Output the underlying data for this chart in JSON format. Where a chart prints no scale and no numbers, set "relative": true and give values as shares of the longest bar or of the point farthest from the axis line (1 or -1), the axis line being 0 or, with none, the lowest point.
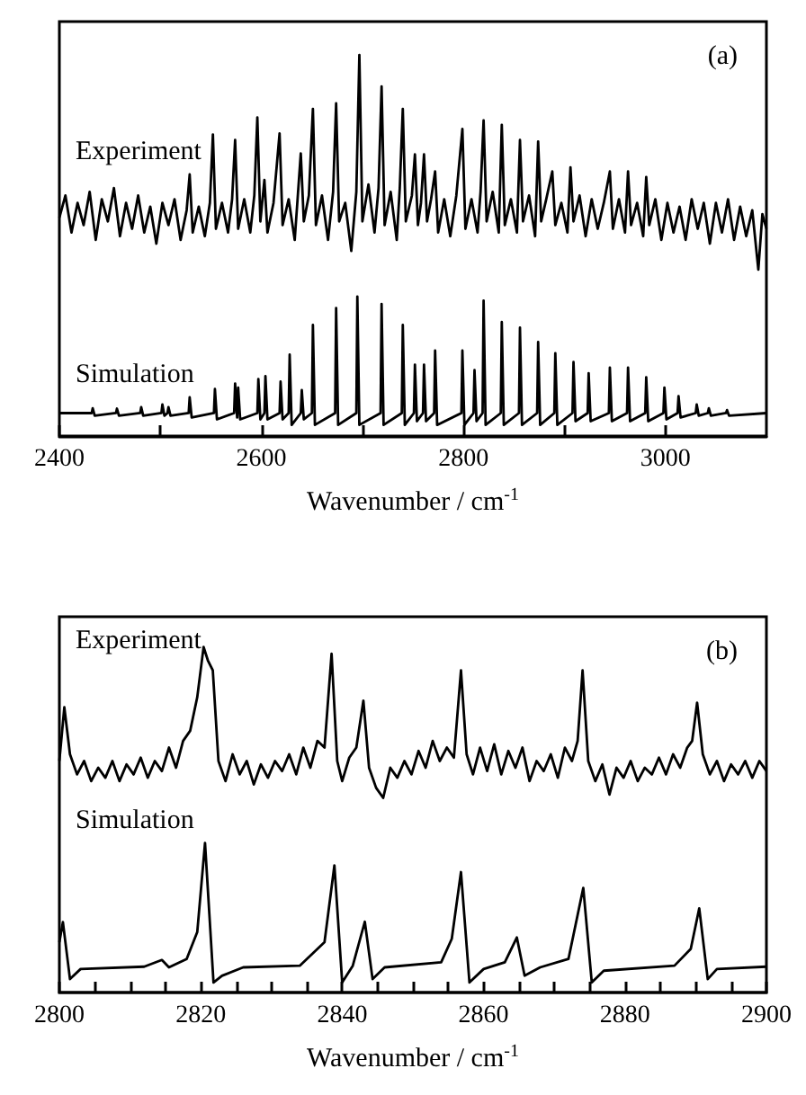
{
  "chart_data": [
    {
      "type": "line",
      "relative": true,
      "xlim": [
        2400,
        3100
      ],
      "xlabel": "Wavenumber / cm$^{-1}$",
      "annotations": [
        "(a)"
      ],
      "tick_labels": "x",
      "xticks": [
        2400,
        {
          "value": 2500,
          "label": null
        },
        2600,
        {
          "value": 2700,
          "label": null
        },
        2800,
        {
          "value": 2900,
          "label": null
        },
        3000
      ],
      "series": [
        {
          "name": "Experiment",
          "color": "#000000",
          "x": [
            2400,
            2406,
            2412,
            2418,
            2424,
            2430,
            2436,
            2442,
            2448,
            2454,
            2460,
            2466,
            2472,
            2478,
            2484,
            2490,
            2496,
            2502,
            2508,
            2514,
            2520,
            2526,
            2529,
            2532,
            2538,
            2544,
            2549,
            2552,
            2555,
            2561,
            2567,
            2571,
            2574,
            2577,
            2583,
            2589,
            2593,
            2596,
            2599,
            2603,
            2606,
            2612,
            2618,
            2621,
            2627,
            2633,
            2639,
            2642,
            2647,
            2651,
            2654,
            2660,
            2666,
            2671,
            2674,
            2677,
            2683,
            2689,
            2694,
            2697,
            2700,
            2706,
            2712,
            2716,
            2719,
            2722,
            2728,
            2734,
            2737,
            2740,
            2743,
            2749,
            2752,
            2755,
            2758,
            2761,
            2764,
            2768,
            2772,
            2775,
            2781,
            2787,
            2793,
            2799,
            2802,
            2808,
            2814,
            2817,
            2820,
            2823,
            2829,
            2835,
            2838,
            2841,
            2847,
            2853,
            2856,
            2859,
            2865,
            2871,
            2874,
            2877,
            2882,
            2888,
            2891,
            2897,
            2903,
            2906,
            2909,
            2915,
            2921,
            2927,
            2933,
            2939,
            2945,
            2948,
            2954,
            2960,
            2963,
            2966,
            2972,
            2978,
            2981,
            2984,
            2990,
            2996,
            3002,
            3008,
            3014,
            3020,
            3026,
            3032,
            3038,
            3044,
            3050,
            3056,
            3062,
            3068,
            3074,
            3080,
            3086,
            3092,
            3096,
            3100
          ],
          "values": [
            0.56,
            0.62,
            0.52,
            0.6,
            0.54,
            0.63,
            0.5,
            0.61,
            0.55,
            0.64,
            0.51,
            0.6,
            0.53,
            0.62,
            0.52,
            0.59,
            0.49,
            0.6,
            0.54,
            0.61,
            0.5,
            0.58,
            0.677,
            0.52,
            0.59,
            0.51,
            0.6,
            0.785,
            0.53,
            0.6,
            0.52,
            0.61,
            0.77,
            0.53,
            0.61,
            0.52,
            0.62,
            0.831,
            0.55,
            0.662,
            0.52,
            0.6,
            0.788,
            0.54,
            0.61,
            0.5,
            0.734,
            0.55,
            0.62,
            0.854,
            0.54,
            0.62,
            0.5,
            0.63,
            0.869,
            0.55,
            0.6,
            0.47,
            0.63,
            1.0,
            0.55,
            0.65,
            0.52,
            0.64,
            0.915,
            0.54,
            0.63,
            0.5,
            0.64,
            0.854,
            0.55,
            0.62,
            0.731,
            0.54,
            0.6,
            0.731,
            0.55,
            0.61,
            0.685,
            0.52,
            0.61,
            0.51,
            0.62,
            0.8,
            0.53,
            0.61,
            0.52,
            0.63,
            0.823,
            0.55,
            0.63,
            0.52,
            0.811,
            0.54,
            0.61,
            0.52,
            0.77,
            0.55,
            0.62,
            0.51,
            0.766,
            0.55,
            0.61,
            0.685,
            0.54,
            0.6,
            0.52,
            0.696,
            0.55,
            0.62,
            0.51,
            0.61,
            0.53,
            0.6,
            0.685,
            0.53,
            0.61,
            0.52,
            0.685,
            0.54,
            0.6,
            0.51,
            0.67,
            0.54,
            0.61,
            0.5,
            0.6,
            0.52,
            0.59,
            0.5,
            0.61,
            0.53,
            0.6,
            0.49,
            0.6,
            0.52,
            0.61,
            0.5,
            0.59,
            0.51,
            0.58,
            0.42,
            0.57,
            0.53
          ]
        },
        {
          "name": "Simulation",
          "color": "#000000",
          "x": [
            2400,
            2432,
            2433,
            2435,
            2456,
            2457,
            2459,
            2480,
            2481,
            2483,
            2501,
            2502,
            2504,
            2507,
            2508,
            2510,
            2528,
            2529,
            2531,
            2553,
            2554,
            2556,
            2573,
            2574,
            2576,
            2577,
            2579,
            2596,
            2597,
            2599,
            2603,
            2604,
            2606,
            2618,
            2619,
            2621,
            2627,
            2628,
            2630,
            2639,
            2640,
            2642,
            2650,
            2651,
            2653,
            2673,
            2674,
            2676,
            2694,
            2695,
            2697,
            2718,
            2719,
            2721,
            2739,
            2740,
            2742,
            2751,
            2752,
            2754,
            2760,
            2761,
            2763,
            2771,
            2772,
            2774,
            2798,
            2799,
            2801,
            2810,
            2811,
            2813,
            2819,
            2820,
            2822,
            2837,
            2838,
            2840,
            2855,
            2856,
            2858,
            2873,
            2874,
            2876,
            2890,
            2891,
            2893,
            2908,
            2909,
            2911,
            2923,
            2924,
            2926,
            2944,
            2945,
            2947,
            2962,
            2963,
            2965,
            2980,
            2981,
            2983,
            2998,
            2999,
            3001,
            3012,
            3013,
            3015,
            3030,
            3031,
            3033,
            3042,
            3043,
            3045,
            3060,
            3061,
            3063,
            3100
          ],
          "values": [
            0.032,
            0.032,
            0.045,
            0.025,
            0.032,
            0.044,
            0.025,
            0.032,
            0.048,
            0.025,
            0.032,
            0.055,
            0.025,
            0.032,
            0.048,
            0.025,
            0.032,
            0.075,
            0.02,
            0.032,
            0.097,
            0.015,
            0.032,
            0.112,
            0.02,
            0.101,
            0.015,
            0.032,
            0.124,
            0.015,
            0.032,
            0.132,
            0.015,
            0.032,
            0.117,
            0.015,
            0.032,
            0.19,
            0.0,
            0.032,
            0.094,
            0.015,
            0.032,
            0.27,
            0.0,
            0.032,
            0.316,
            0.0,
            0.032,
            0.347,
            0.0,
            0.032,
            0.327,
            0.0,
            0.032,
            0.27,
            0.0,
            0.032,
            0.163,
            0.01,
            0.032,
            0.163,
            0.01,
            0.032,
            0.201,
            0.0,
            0.032,
            0.201,
            0.0,
            0.032,
            0.148,
            0.01,
            0.032,
            0.336,
            0.0,
            0.032,
            0.278,
            0.0,
            0.032,
            0.263,
            0.0,
            0.032,
            0.224,
            0.0,
            0.032,
            0.194,
            0.0,
            0.032,
            0.17,
            0.01,
            0.032,
            0.14,
            0.01,
            0.032,
            0.155,
            0.01,
            0.032,
            0.155,
            0.01,
            0.032,
            0.129,
            0.01,
            0.032,
            0.101,
            0.015,
            0.032,
            0.078,
            0.02,
            0.032,
            0.055,
            0.025,
            0.032,
            0.045,
            0.025,
            0.032,
            0.04,
            0.025,
            0.032
          ]
        }
      ]
    },
    {
      "type": "line",
      "relative": true,
      "xlim": [
        2800,
        2900
      ],
      "xlabel": "Wavenumber / cm$^{-1}$",
      "annotations": [
        "(b)"
      ],
      "tick_labels": "x",
      "xticks": [
        2800,
        {
          "value": 2805,
          "label": null
        },
        {
          "value": 2810,
          "label": null
        },
        {
          "value": 2815,
          "label": null
        },
        2820,
        {
          "value": 2825,
          "label": null
        },
        {
          "value": 2830,
          "label": null
        },
        {
          "value": 2835,
          "label": null
        },
        2840,
        {
          "value": 2845,
          "label": null
        },
        {
          "value": 2850,
          "label": null
        },
        {
          "value": 2855,
          "label": null
        },
        2860,
        {
          "value": 2865,
          "label": null
        },
        {
          "value": 2870,
          "label": null
        },
        {
          "value": 2875,
          "label": null
        },
        2880,
        {
          "value": 2885,
          "label": null
        },
        {
          "value": 2890,
          "label": null
        },
        {
          "value": 2895,
          "label": null
        },
        2900
      ],
      "series": [
        {
          "name": "Experiment",
          "color": "#000000",
          "x": [
            2800,
            2800.7,
            2801.5,
            2802.5,
            2803.5,
            2804.5,
            2805.5,
            2806.5,
            2807.5,
            2808.5,
            2809.5,
            2810.5,
            2811.5,
            2812.5,
            2813.5,
            2814.5,
            2815.5,
            2816.5,
            2817.5,
            2818.5,
            2819.5,
            2820.4,
            2821,
            2821.7,
            2822.5,
            2823.5,
            2824.5,
            2825.5,
            2826.5,
            2827.5,
            2828.5,
            2829.5,
            2830.5,
            2831.5,
            2832.5,
            2833.5,
            2834.5,
            2835.5,
            2836.5,
            2837.5,
            2838.5,
            2839.3,
            2840,
            2841,
            2842,
            2843,
            2843.8,
            2844.8,
            2845.8,
            2846.8,
            2847.8,
            2848.8,
            2849.8,
            2850.8,
            2851.8,
            2852.8,
            2853.8,
            2854.8,
            2855.8,
            2856.8,
            2857.6,
            2858.5,
            2859.5,
            2860.5,
            2861.5,
            2862.5,
            2863.5,
            2864.5,
            2865.5,
            2866.5,
            2867.5,
            2868.5,
            2869.5,
            2870.5,
            2871.5,
            2872.5,
            2873.3,
            2874,
            2874.8,
            2875.8,
            2876.8,
            2877.8,
            2878.8,
            2879.8,
            2880.8,
            2881.8,
            2882.8,
            2883.8,
            2884.8,
            2885.8,
            2886.8,
            2887.8,
            2888.8,
            2889.5,
            2890.2,
            2891,
            2892,
            2893,
            2894,
            2895,
            2896,
            2897,
            2898,
            2899,
            2900
          ],
          "values": [
            0.66,
            0.82,
            0.68,
            0.62,
            0.66,
            0.6,
            0.64,
            0.61,
            0.66,
            0.6,
            0.65,
            0.62,
            0.67,
            0.61,
            0.66,
            0.63,
            0.7,
            0.64,
            0.72,
            0.75,
            0.85,
            1.0,
            0.96,
            0.93,
            0.66,
            0.6,
            0.68,
            0.62,
            0.66,
            0.59,
            0.65,
            0.61,
            0.66,
            0.63,
            0.68,
            0.62,
            0.7,
            0.64,
            0.72,
            0.7,
            0.98,
            0.66,
            0.6,
            0.67,
            0.7,
            0.84,
            0.64,
            0.58,
            0.55,
            0.64,
            0.61,
            0.66,
            0.62,
            0.69,
            0.64,
            0.72,
            0.66,
            0.7,
            0.67,
            0.93,
            0.68,
            0.62,
            0.7,
            0.63,
            0.71,
            0.62,
            0.69,
            0.64,
            0.7,
            0.6,
            0.66,
            0.63,
            0.68,
            0.61,
            0.7,
            0.66,
            0.72,
            0.93,
            0.66,
            0.6,
            0.65,
            0.56,
            0.64,
            0.61,
            0.66,
            0.6,
            0.64,
            0.62,
            0.67,
            0.62,
            0.68,
            0.64,
            0.7,
            0.72,
            0.834,
            0.68,
            0.62,
            0.66,
            0.6,
            0.65,
            0.62,
            0.66,
            0.61,
            0.66,
            0.63
          ]
        },
        {
          "name": "Simulation",
          "color": "#000000",
          "x": [
            2800,
            2800.5,
            2801.5,
            2803,
            2812,
            2814.5,
            2815.5,
            2818,
            2819.5,
            2820.6,
            2821.8,
            2823,
            2826,
            2834,
            2837.5,
            2838.9,
            2840,
            2841.5,
            2843.2,
            2844.3,
            2846,
            2854,
            2855.5,
            2856.8,
            2858,
            2860,
            2863,
            2864.7,
            2865.8,
            2868,
            2872,
            2874.1,
            2875.3,
            2877,
            2887,
            2889.3,
            2890.5,
            2891.7,
            2893,
            2900
          ],
          "values": [
            0.12,
            0.18,
            0.01,
            0.04,
            0.047,
            0.067,
            0.045,
            0.07,
            0.15,
            0.416,
            0.0,
            0.02,
            0.045,
            0.05,
            0.12,
            0.349,
            0.0,
            0.05,
            0.181,
            0.01,
            0.045,
            0.06,
            0.13,
            0.329,
            0.0,
            0.04,
            0.06,
            0.134,
            0.02,
            0.045,
            0.07,
            0.282,
            0.0,
            0.035,
            0.05,
            0.1,
            0.221,
            0.01,
            0.04,
            0.047
          ]
        }
      ]
    }
  ]
}
